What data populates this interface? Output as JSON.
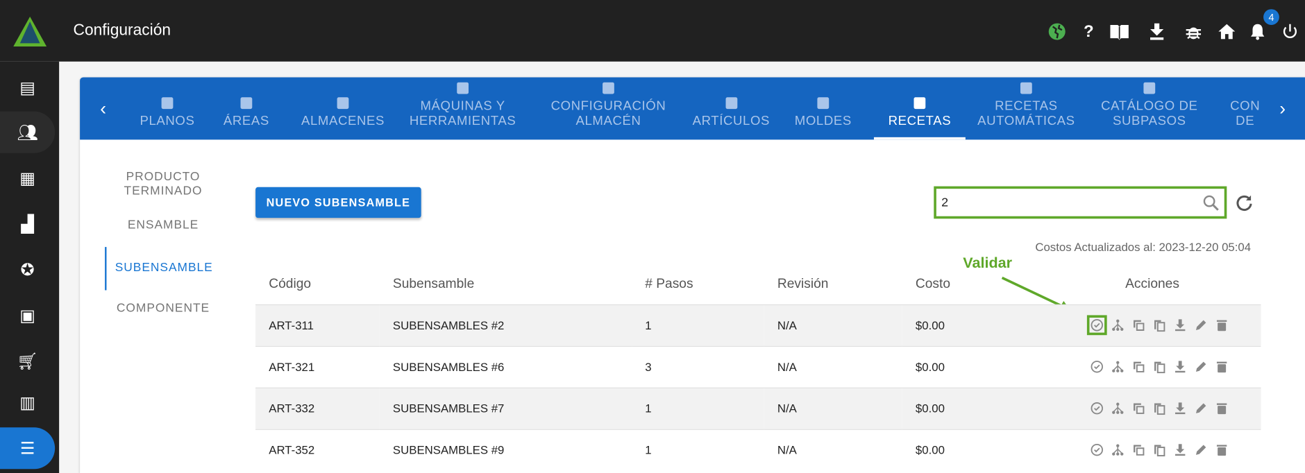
{
  "header": {
    "title": "Configuración",
    "notification_count": "4",
    "icons": [
      "globe-icon",
      "help-icon",
      "book-icon",
      "download-icon",
      "bug-icon",
      "home-icon",
      "bell-icon",
      "power-icon"
    ]
  },
  "sidebar": {
    "items": [
      "dashboard-icon",
      "users-icon",
      "warehouse-icon",
      "factory-icon",
      "badge-icon",
      "toolbox-icon",
      "cart-icon",
      "register-icon",
      "settings-sliders-icon"
    ]
  },
  "tabs": [
    {
      "label1": "PLANOS",
      "label2": ""
    },
    {
      "label1": "ÁREAS",
      "label2": ""
    },
    {
      "label1": "ALMACENES",
      "label2": ""
    },
    {
      "label1": "MÁQUINAS Y",
      "label2": "HERRAMIENTAS"
    },
    {
      "label1": "CONFIGURACIÓN",
      "label2": "ALMACÉN"
    },
    {
      "label1": "ARTÍCULOS",
      "label2": ""
    },
    {
      "label1": "MOLDES",
      "label2": ""
    },
    {
      "label1": "RECETAS",
      "label2": ""
    },
    {
      "label1": "RECETAS",
      "label2": "AUTOMÁTICAS"
    },
    {
      "label1": "CATÁLOGO DE",
      "label2": "SUBPASOS"
    },
    {
      "label1": "CON",
      "label2": "DE"
    }
  ],
  "active_tab": "RECETAS",
  "subnav": [
    {
      "label1": "PRODUCTO",
      "label2": "TERMINADO"
    },
    {
      "label1": "ENSAMBLE",
      "label2": ""
    },
    {
      "label1": "SUBENSAMBLE",
      "label2": ""
    },
    {
      "label1": "COMPONENTE",
      "label2": ""
    }
  ],
  "new_button": "NUEVO SUBENSAMBLE",
  "search": {
    "value": "2"
  },
  "costos": "Costos Actualizados al: 2023-12-20 05:04",
  "annotation": "Validar",
  "colors": {
    "accent": "#1976d2",
    "tabbar": "#1565c0",
    "highlight": "#5fa82a"
  },
  "table": {
    "headers": [
      "Código",
      "Subensamble",
      "# Pasos",
      "Revisión",
      "Costo",
      "Acciones"
    ],
    "rows": [
      [
        "ART-311",
        "SUBENSAMBLES #2",
        "1",
        "N/A",
        "$0.00"
      ],
      [
        "ART-321",
        "SUBENSAMBLES #6",
        "3",
        "N/A",
        "$0.00"
      ],
      [
        "ART-332",
        "SUBENSAMBLES #7",
        "1",
        "N/A",
        "$0.00"
      ],
      [
        "ART-352",
        "SUBENSAMBLES #9",
        "1",
        "N/A",
        "$0.00"
      ]
    ]
  }
}
